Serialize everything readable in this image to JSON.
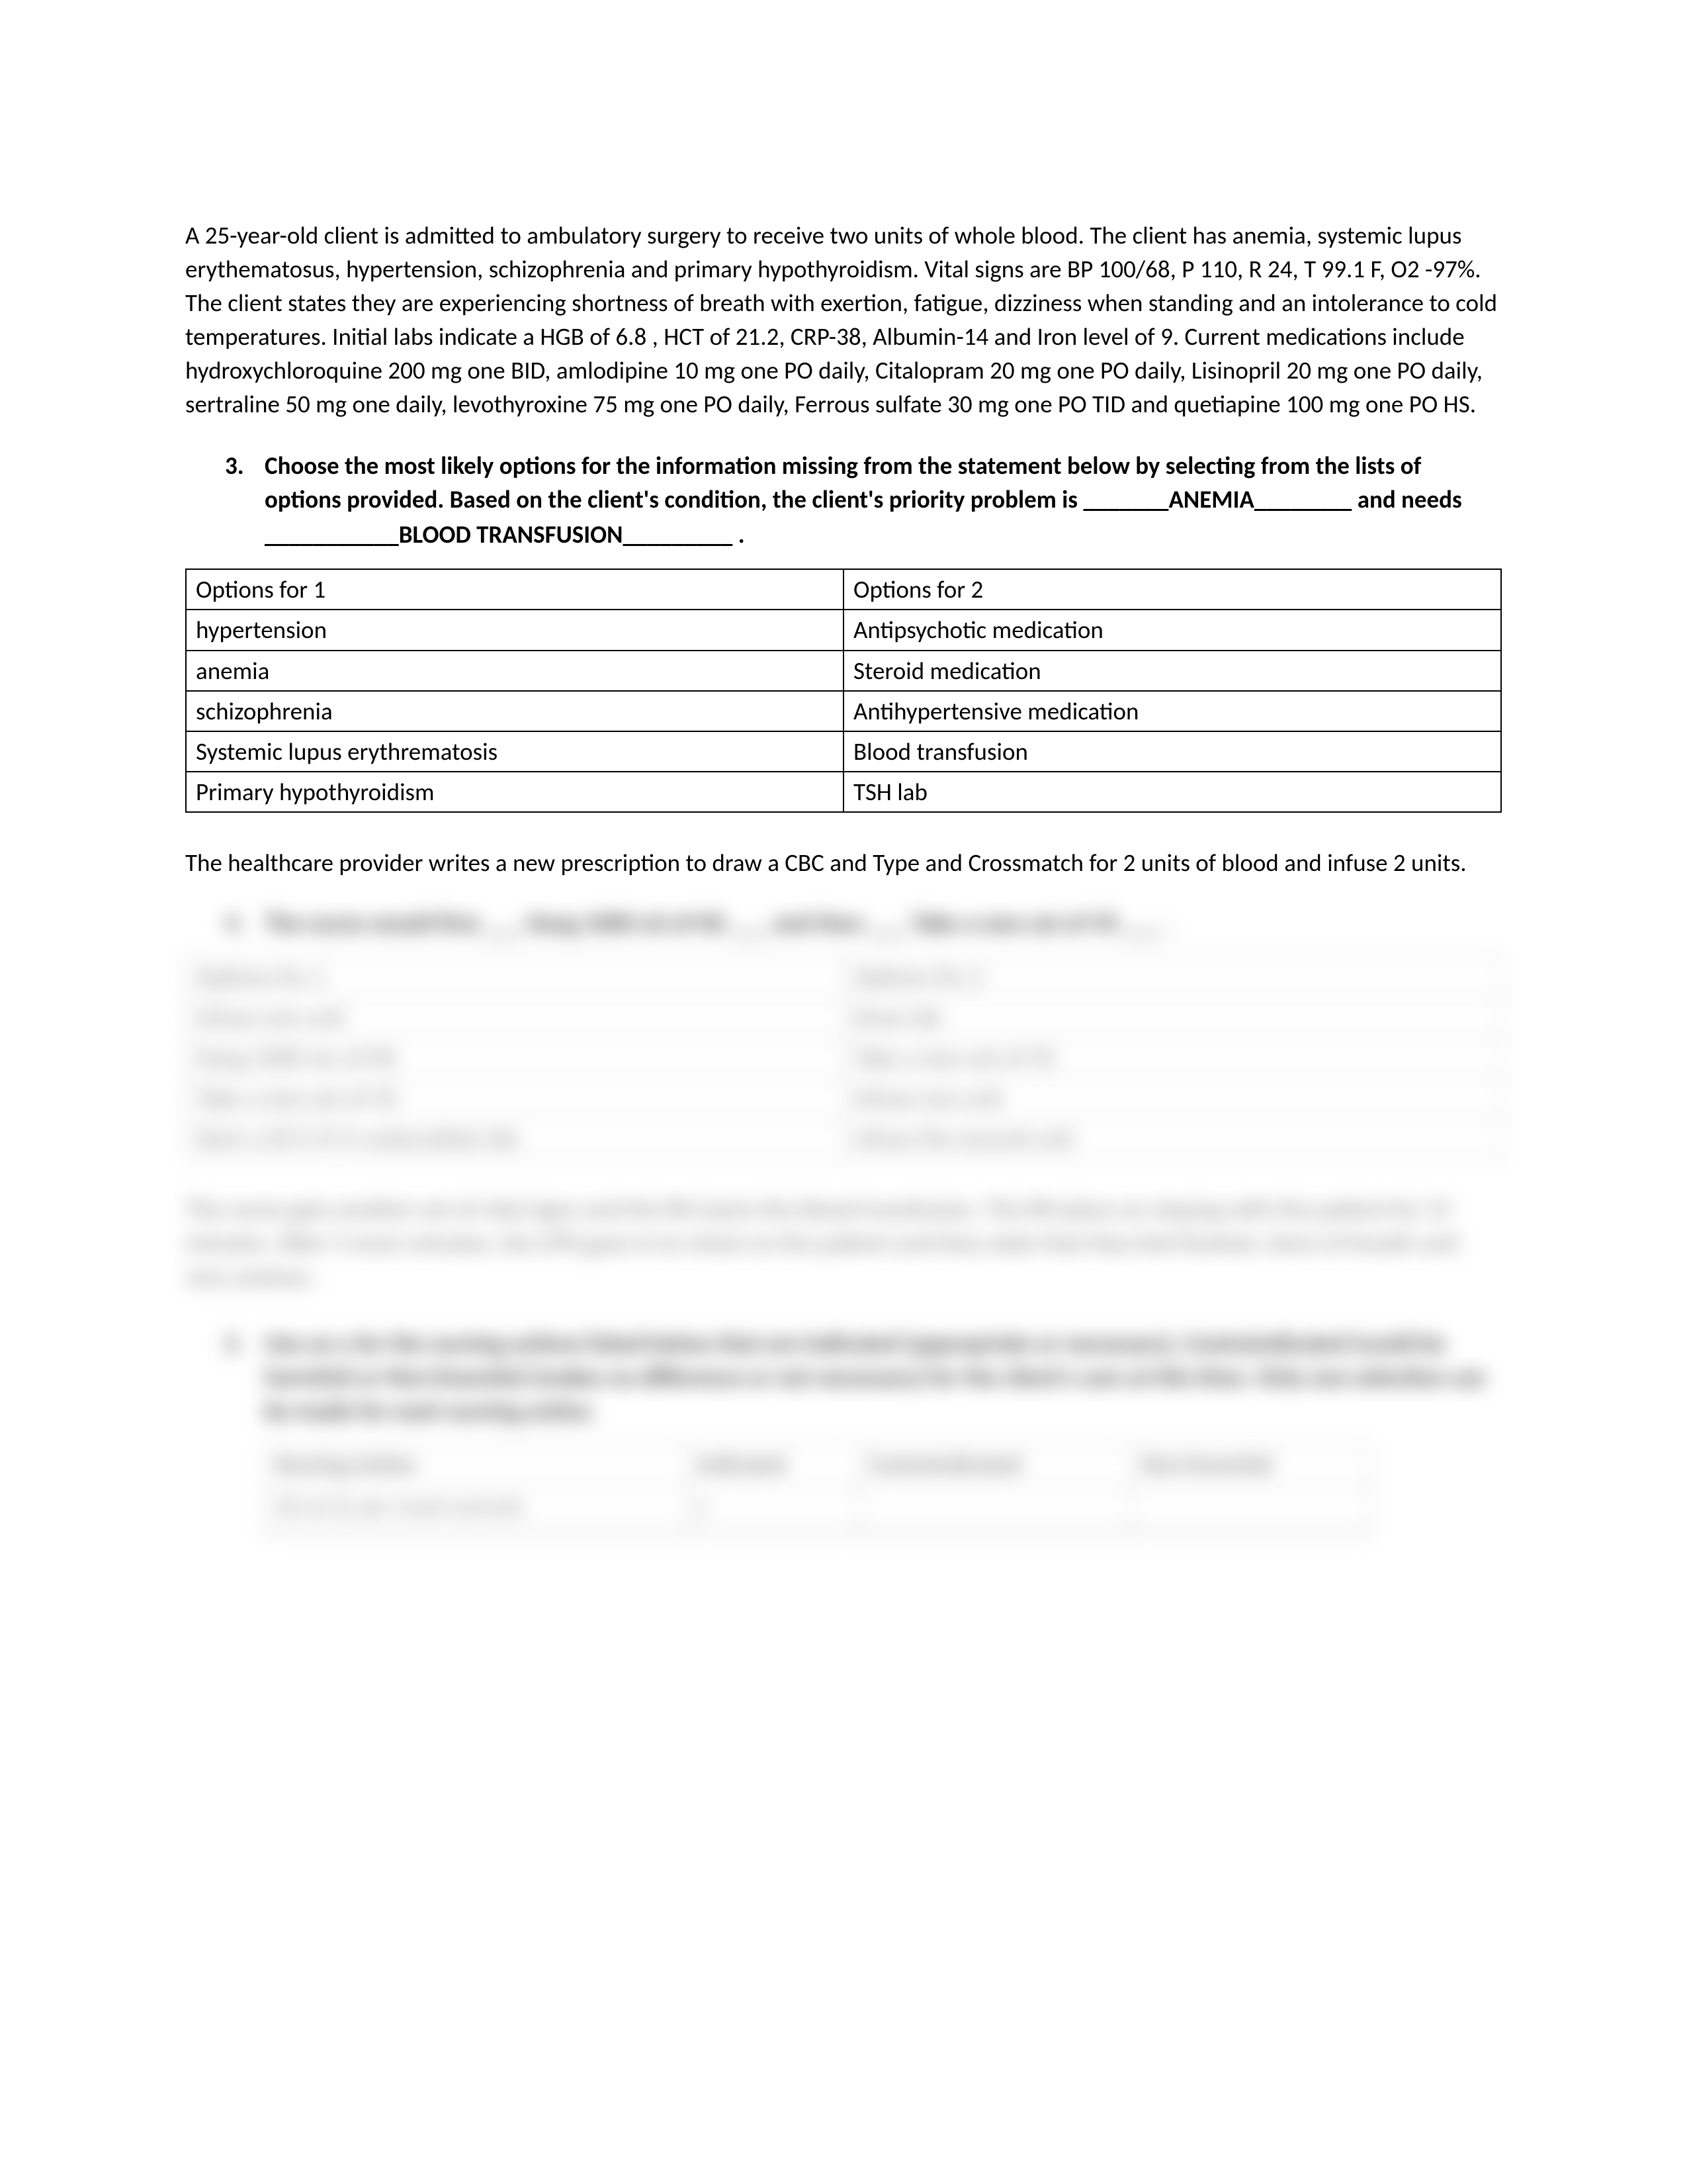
{
  "scenario": "A 25-year-old client is admitted to ambulatory surgery to receive two units of whole blood.  The client has anemia, systemic lupus erythematosus, hypertension, schizophrenia and primary hypothyroidism.  Vital signs are BP 100/68, P 110, R 24, T 99.1 F, O2 -97%.  The client states they are experiencing shortness of breath with exertion, fatigue, dizziness when standing and an intolerance to cold temperatures.  Initial labs indicate a HGB of 6.8 , HCT of 21.2, CRP-38, Albumin-14 and Iron level of 9.  Current medications include hydroxychloroquine 200 mg one BID, amlodipine 10 mg one PO daily, Citalopram 20 mg one PO daily, Lisinopril 20 mg one PO daily, sertraline 50 mg one daily, levothyroxine 75 mg one PO daily, Ferrous sulfate 30 mg one PO TID and quetiapine 100 mg one PO HS.",
  "q3": {
    "number": "3.",
    "stem_a": "Choose the most likely options for the information missing from the statement below by selecting from the lists of options provided.  Based on the client's condition, the client's priority problem is ",
    "blank1_prefix": "_______",
    "answer1": "ANEMIA",
    "blank1_suffix": "________",
    "mid": " and needs ",
    "blank2_prefix": "___________",
    "answer2": "BLOOD TRANSFUSION",
    "blank2_suffix": "_________ ."
  },
  "options_table": {
    "header": [
      "Options for 1",
      "Options for 2"
    ],
    "rows": [
      [
        "hypertension",
        "Antipsychotic medication"
      ],
      [
        "anemia",
        "Steroid medication"
      ],
      [
        "schizophrenia",
        "Antihypertensive medication"
      ],
      [
        "Systemic lupus erythrematosis",
        "Blood transfusion"
      ],
      [
        "Primary hypothyroidism",
        "TSH lab"
      ]
    ]
  },
  "followup": "The healthcare provider writes a new prescription to draw a CBC and Type and Crossmatch for 2 units of blood and infuse 2 units.",
  "blurred": {
    "q4": {
      "number": "4.",
      "text": "The nurse would first ___ Hang 1000 ml of NS ___ and then ___ Take a new set of VS ___ ."
    },
    "table1": {
      "header": [
        "Options for 1",
        "Options for 2"
      ],
      "rows": [
        [
          "Infuse one unit",
          "Draw lab"
        ],
        [
          "Hang 1000 mL of NS",
          "Take a new set of VS"
        ],
        [
          "Take a new set of VS",
          "Infuse one unit"
        ],
        [
          "Start a 20 G IV in antecubital site",
          "Infuse the second unit"
        ]
      ]
    },
    "para": "The nurse gets another set of vital signs and the RN starts the blood transfusion. The RN plans on staying with the patient for 15 minutes.  After 5 more minutes, the LPN goes in to check on the patient and they state that they feel flushed, short of breath and very anxious.",
    "q5": {
      "number": "5.",
      "text": "Use an x for the nursing actions listed below that are Indicated (appropriate or necessary), Contraindicated (could be harmful) or Non-Essential (makes no difference or not necessary) for the client's care at this time.  Only one selection can be made for each nursing action."
    },
    "table2": {
      "header": [
        "Nursing Action",
        "Indicated",
        "Contraindicated",
        "Non-Essential"
      ],
      "rows": [
        [
          "O2 at 2L per nasal cannula",
          "x",
          "",
          ""
        ],
        [
          "",
          "",
          "",
          ""
        ]
      ]
    }
  },
  "style": {
    "page_bg": "#ffffff",
    "text_color": "#000000",
    "font_size_pt": 11,
    "border_color": "#000000",
    "blur_text_color": "#8a8a8a",
    "blur_border_color": "#c8c8c8"
  }
}
